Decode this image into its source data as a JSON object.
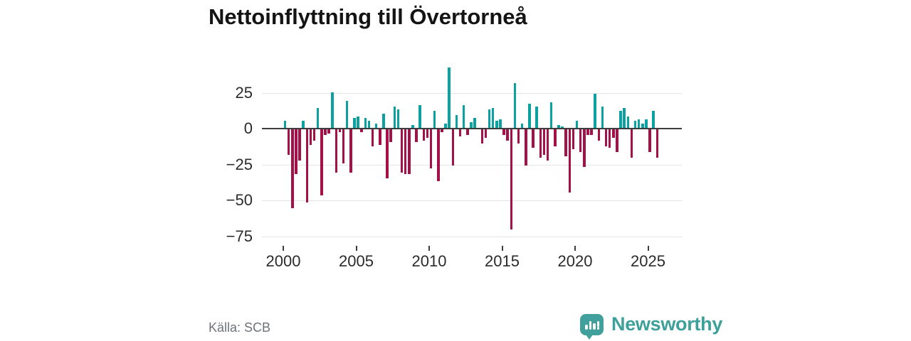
{
  "header": {
    "title": "Nettoinflyttning till Övertorneå"
  },
  "chart_data": {
    "type": "bar",
    "title": "Nettoinflyttning till Övertorneå",
    "x_unit": "quarter",
    "x_start": "2000-Q1",
    "x_end": "2025-Q3",
    "series": [
      {
        "name": "Nettoinflyttning",
        "values": [
          5,
          -18,
          -55,
          -31,
          -22,
          5,
          -51,
          -11,
          -8,
          14,
          -46,
          -4,
          -3,
          25,
          -30,
          -2,
          -24,
          19,
          -30,
          7,
          8,
          -2,
          7,
          5,
          -12,
          3,
          -11,
          10,
          -34,
          -9,
          15,
          13,
          -30,
          -31,
          -31,
          2,
          -9,
          16,
          -8,
          -6,
          -27,
          12,
          -36,
          -2,
          3,
          42,
          -25,
          9,
          -5,
          16,
          -4,
          4,
          7,
          0,
          -10,
          -6,
          13,
          14,
          5,
          6,
          -4,
          -8,
          -70,
          31,
          -10,
          3,
          -25,
          17,
          -13,
          15,
          -20,
          -18,
          -22,
          18,
          -12,
          2,
          1,
          -19,
          -44,
          -14,
          5,
          -16,
          -26,
          -4,
          -4,
          24,
          -8,
          15,
          -12,
          -13,
          -6,
          -16,
          12,
          14,
          8,
          -20,
          5,
          6,
          3,
          6,
          -16,
          12,
          -20
        ]
      }
    ],
    "y_ticks": [
      25,
      0,
      -25,
      -50,
      -75
    ],
    "y_tick_labels": [
      "25",
      "0",
      "−25",
      "−50",
      "−75"
    ],
    "x_ticks": [
      2000,
      2005,
      2010,
      2015,
      2020,
      2025
    ],
    "x_tick_labels": [
      "2000",
      "2005",
      "2010",
      "2015",
      "2020",
      "2025"
    ],
    "ylim": [
      -75,
      45
    ],
    "grid": "horizontal",
    "legend": "none",
    "positive_color": "#0aa1a0",
    "negative_color": "#a31147"
  },
  "footer": {
    "source": "Källa: SCB",
    "brand": "Newsworthy"
  }
}
